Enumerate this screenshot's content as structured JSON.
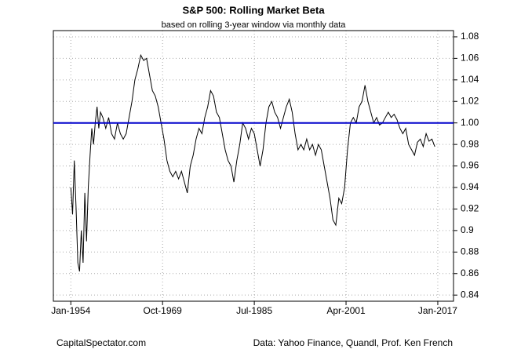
{
  "chart_data": {
    "type": "line",
    "title": "S&P 500: Rolling Market Beta",
    "subtitle": "based on rolling 3-year window via monthly data",
    "source_left": "CapitalSpectator.com",
    "source_right": "Data: Yahoo Finance, Quandl, Prof. Ken French",
    "xlim": [
      1951.0,
      2019.7
    ],
    "ylim": [
      0.8343,
      1.0858
    ],
    "xticks": [
      {
        "value": 1954.0,
        "label": "Jan-1954"
      },
      {
        "value": 1969.75,
        "label": "Oct-1969"
      },
      {
        "value": 1985.5,
        "label": "Jul-1985"
      },
      {
        "value": 2001.25,
        "label": "Apr-2001"
      },
      {
        "value": 2017.0,
        "label": "Jan-2017"
      }
    ],
    "yticks": [
      0.84,
      0.86,
      0.88,
      0.9,
      0.92,
      0.94,
      0.96,
      0.98,
      {
        "value": 1.0,
        "label": "1.00"
      },
      1.02,
      1.04,
      1.06,
      1.08
    ],
    "grid": true,
    "reference_line": {
      "value": 1.0,
      "color": "#0000cc"
    },
    "series": [
      {
        "color": "#000000",
        "x": [
          1954.0,
          1954.3,
          1954.6,
          1954.9,
          1955.2,
          1955.5,
          1955.8,
          1956.1,
          1956.4,
          1956.7,
          1957.0,
          1957.3,
          1957.6,
          1957.9,
          1958.2,
          1958.5,
          1958.8,
          1959.1,
          1959.5,
          1960.0,
          1960.5,
          1961.0,
          1961.5,
          1962.0,
          1962.5,
          1963.0,
          1963.5,
          1964.0,
          1964.5,
          1965.0,
          1965.5,
          1966.0,
          1966.5,
          1967.0,
          1967.5,
          1968.0,
          1968.5,
          1969.0,
          1969.5,
          1970.0,
          1970.5,
          1971.0,
          1971.5,
          1972.0,
          1972.5,
          1973.0,
          1973.5,
          1974.0,
          1974.5,
          1975.0,
          1975.5,
          1976.0,
          1976.5,
          1977.0,
          1977.5,
          1978.0,
          1978.5,
          1979.0,
          1979.5,
          1980.0,
          1980.5,
          1981.0,
          1981.5,
          1982.0,
          1982.5,
          1983.0,
          1983.5,
          1984.0,
          1984.5,
          1985.0,
          1985.5,
          1986.0,
          1986.5,
          1987.0,
          1987.5,
          1988.0,
          1988.5,
          1989.0,
          1989.5,
          1990.0,
          1990.5,
          1991.0,
          1991.5,
          1992.0,
          1992.5,
          1993.0,
          1993.5,
          1994.0,
          1994.5,
          1995.0,
          1995.5,
          1996.0,
          1996.5,
          1997.0,
          1997.5,
          1998.0,
          1998.5,
          1999.0,
          1999.5,
          2000.0,
          2000.5,
          2001.0,
          2001.5,
          2002.0,
          2002.5,
          2003.0,
          2003.5,
          2004.0,
          2004.5,
          2005.0,
          2005.5,
          2006.0,
          2006.5,
          2007.0,
          2007.5,
          2008.0,
          2008.5,
          2009.0,
          2009.5,
          2010.0,
          2010.5,
          2011.0,
          2011.5,
          2012.0,
          2012.5,
          2013.0,
          2013.5,
          2014.0,
          2014.5,
          2015.0,
          2015.5,
          2016.0,
          2016.5
        ],
        "values": [
          0.94,
          0.915,
          0.965,
          0.92,
          0.87,
          0.862,
          0.9,
          0.87,
          0.935,
          0.89,
          0.94,
          0.97,
          0.995,
          0.98,
          1.0,
          1.015,
          0.995,
          1.01,
          1.005,
          0.995,
          1.005,
          0.99,
          0.985,
          1.0,
          0.99,
          0.985,
          0.99,
          1.005,
          1.02,
          1.04,
          1.05,
          1.063,
          1.058,
          1.06,
          1.045,
          1.03,
          1.025,
          1.015,
          1.0,
          0.985,
          0.965,
          0.955,
          0.95,
          0.955,
          0.948,
          0.955,
          0.945,
          0.935,
          0.96,
          0.97,
          0.985,
          0.995,
          0.99,
          1.005,
          1.015,
          1.03,
          1.025,
          1.01,
          1.005,
          0.99,
          0.975,
          0.965,
          0.96,
          0.945,
          0.965,
          0.98,
          1.0,
          0.995,
          0.985,
          0.995,
          0.99,
          0.975,
          0.96,
          0.975,
          1.0,
          1.015,
          1.02,
          1.01,
          1.005,
          0.995,
          1.005,
          1.015,
          1.022,
          1.01,
          0.99,
          0.975,
          0.98,
          0.975,
          0.985,
          0.975,
          0.98,
          0.97,
          0.98,
          0.975,
          0.96,
          0.945,
          0.93,
          0.91,
          0.905,
          0.93,
          0.925,
          0.94,
          0.975,
          1.0,
          1.005,
          1.0,
          1.015,
          1.02,
          1.035,
          1.02,
          1.01,
          1.0,
          1.005,
          0.998,
          1.0,
          1.005,
          1.01,
          1.005,
          1.008,
          1.003,
          0.995,
          0.99,
          0.995,
          0.98,
          0.975,
          0.97,
          0.982,
          0.985,
          0.978,
          0.99,
          0.983,
          0.985,
          0.978
        ]
      }
    ]
  }
}
